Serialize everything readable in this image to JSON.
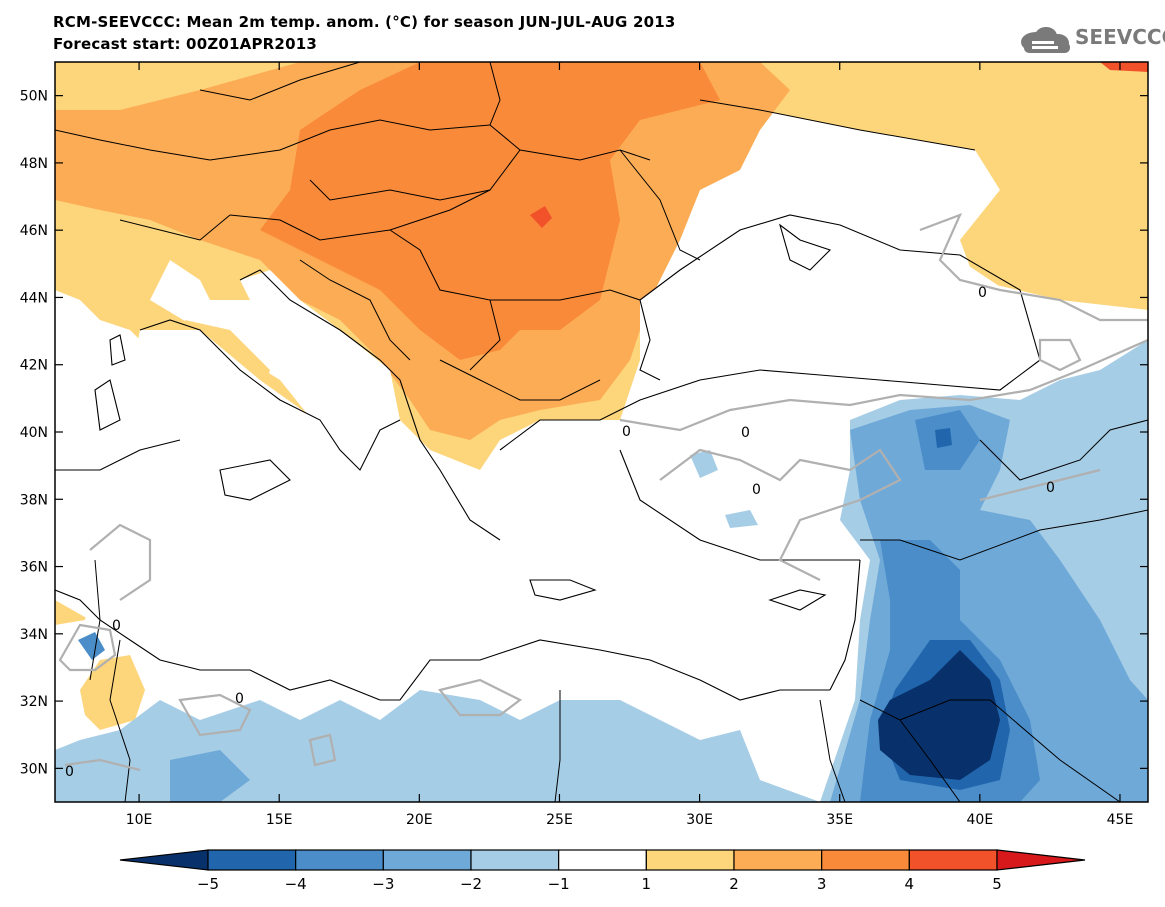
{
  "title_line1": "RCM-SEEVCCC: Mean 2m temp. anom. (°C) for season JUN-JUL-AUG 2013",
  "title_line2": "Forecast start: 00Z01APR2013",
  "logo_text": "SEEVCCC",
  "map": {
    "lon_range": [
      7,
      46
    ],
    "lat_range": [
      29,
      51
    ],
    "lon_ticks": [
      "10E",
      "15E",
      "20E",
      "25E",
      "30E",
      "35E",
      "40E",
      "45E"
    ],
    "lat_ticks": [
      "30N",
      "32N",
      "34N",
      "36N",
      "38N",
      "40N",
      "42N",
      "44N",
      "46N",
      "48N",
      "50N"
    ],
    "contour_label": "0"
  },
  "colorbar": {
    "labels": [
      "−5",
      "−4",
      "−3",
      "−2",
      "−1",
      "1",
      "2",
      "3",
      "4",
      "5"
    ],
    "colors": [
      "#08306b",
      "#2166ac",
      "#4a8dc9",
      "#6fa9d8",
      "#a6cde6",
      "#ffffff",
      "#fdd57b",
      "#fcac55",
      "#f98a3a",
      "#f2522a",
      "#d7191c"
    ]
  }
}
